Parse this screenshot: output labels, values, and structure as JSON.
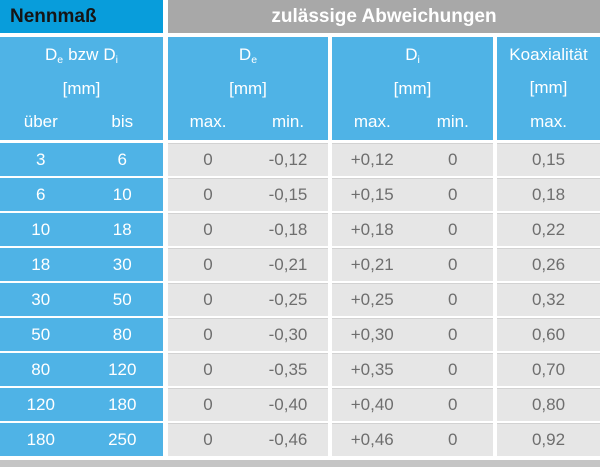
{
  "header": {
    "left": "Nennmaß",
    "right": "zulässige Abweichungen"
  },
  "subheader": {
    "nominal": {
      "sym1": "D",
      "sub1": "e",
      "conj": "bzw",
      "sym2": "D",
      "sub2": "i",
      "unit": "[mm]",
      "col1": "über",
      "col2": "bis"
    },
    "de": {
      "sym": "D",
      "sub": "e",
      "unit": "[mm]",
      "col1": "max.",
      "col2": "min."
    },
    "di": {
      "sym": "D",
      "sub": "i",
      "unit": "[mm]",
      "col1": "max.",
      "col2": "min."
    },
    "koax": {
      "title": "Koaxialität",
      "unit": "[mm]",
      "col1": "max."
    }
  },
  "colors": {
    "header_blue": "#089ddb",
    "cell_blue": "#4fb3e6",
    "header_gray": "#a8a8a8",
    "cell_gray": "#e6e6e6",
    "text_gray": "#6e6e6e",
    "bottom_strip": "#c5c5c5"
  },
  "chart_data": {
    "type": "table",
    "title": "Nennmaß / zulässige Abweichungen",
    "column_groups": [
      "Nennmaß",
      "zulässige Abweichungen"
    ],
    "columns": [
      "De bzw Di [mm] über",
      "De bzw Di [mm] bis",
      "De [mm] max.",
      "De [mm] min.",
      "Di [mm] max.",
      "Di [mm] min.",
      "Koaxialität [mm] max."
    ],
    "rows": [
      [
        "3",
        "6",
        "0",
        "-0,12",
        "+0,12",
        "0",
        "0,15"
      ],
      [
        "6",
        "10",
        "0",
        "-0,15",
        "+0,15",
        "0",
        "0,18"
      ],
      [
        "10",
        "18",
        "0",
        "-0,18",
        "+0,18",
        "0",
        "0,22"
      ],
      [
        "18",
        "30",
        "0",
        "-0,21",
        "+0,21",
        "0",
        "0,26"
      ],
      [
        "30",
        "50",
        "0",
        "-0,25",
        "+0,25",
        "0",
        "0,32"
      ],
      [
        "50",
        "80",
        "0",
        "-0,30",
        "+0,30",
        "0",
        "0,60"
      ],
      [
        "80",
        "120",
        "0",
        "-0,35",
        "+0,35",
        "0",
        "0,70"
      ],
      [
        "120",
        "180",
        "0",
        "-0,40",
        "+0,40",
        "0",
        "0,80"
      ],
      [
        "180",
        "250",
        "0",
        "-0,46",
        "+0,46",
        "0",
        "0,92"
      ]
    ]
  }
}
